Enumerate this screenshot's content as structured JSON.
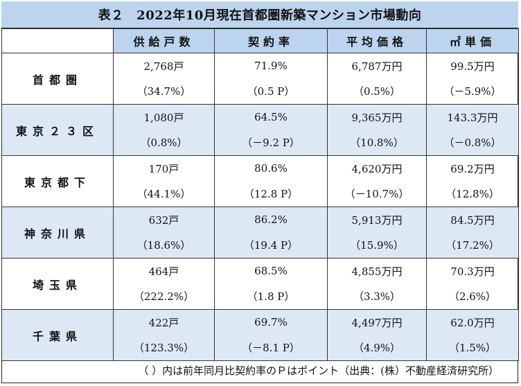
{
  "title": "表２　2022年10月現在首都圏新築マンション市場動向",
  "headers": [
    "供給戸数",
    "契約率",
    "平均価格",
    "㎡単価"
  ],
  "rows": [
    {
      "region": "首都圏",
      "supply": "2,768戸",
      "supply_change": "（34.7%）",
      "contract": "71.9%",
      "contract_change": "（0.5 P）",
      "price": "6,787万円",
      "price_change": "（0.5%）",
      "unit": "99.5万円",
      "unit_change": "（－5.9%）"
    },
    {
      "region": "東京２３区",
      "supply": "1,080戸",
      "supply_change": "（0.8%）",
      "contract": "64.5%",
      "contract_change": "（－9.2 P）",
      "price": "9,365万円",
      "price_change": "（10.8%）",
      "unit": "143.3万円",
      "unit_change": "（－0.8%）"
    },
    {
      "region": "東京都下",
      "supply": "170戸",
      "supply_change": "（44.1%）",
      "contract": "80.6%",
      "contract_change": "（12.8 P）",
      "price": "4,620万円",
      "price_change": "（－10.7%）",
      "unit": "69.2万円",
      "unit_change": "（12.8%）"
    },
    {
      "region": "神奈川県",
      "supply": "632戸",
      "supply_change": "（18.6%）",
      "contract": "86.2%",
      "contract_change": "（19.4 P）",
      "price": "5,913万円",
      "price_change": "（15.9%）",
      "unit": "84.5万円",
      "unit_change": "（17.2%）"
    },
    {
      "region": "埼玉県",
      "supply": "464戸",
      "supply_change": "（222.2%）",
      "contract": "68.5%",
      "contract_change": "（1.8 P）",
      "price": "4,855万円",
      "price_change": "（3.3%）",
      "unit": "70.3万円",
      "unit_change": "（2.6%）"
    },
    {
      "region": "千葉県",
      "supply": "422戸",
      "supply_change": "（123.3%）",
      "contract": "69.7%",
      "contract_change": "（－8.1 P）",
      "price": "4,497万円",
      "price_change": "（4.9%）",
      "unit": "62.0万円",
      "unit_change": "（1.5%）"
    }
  ],
  "footnote": "（ ）内は前年同月比契約率のＰはポイント（出典：(株）不動産経済研究所）",
  "colors": {
    "header_bg": "#bcd4ee",
    "alt_row_bg": "#dde8f5",
    "border": "#333333"
  }
}
